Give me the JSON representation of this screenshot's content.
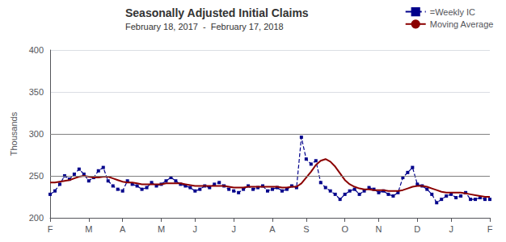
{
  "chart_data": {
    "type": "line",
    "title": "Seasonally Adjusted Initial Claims",
    "subtitle": "February 18, 2017  -  February 17, 2018",
    "ylabel": "Thousands",
    "ylim": [
      200,
      400
    ],
    "yticks": [
      200,
      250,
      300,
      350,
      400
    ],
    "hlines": [
      250,
      300
    ],
    "grid": true,
    "legend": "upper right",
    "categories": [
      "F",
      null,
      null,
      null,
      null,
      null,
      null,
      null,
      "M",
      null,
      null,
      null,
      null,
      null,
      null,
      "A",
      null,
      null,
      null,
      null,
      null,
      null,
      null,
      "M",
      null,
      null,
      null,
      null,
      null,
      null,
      "J",
      null,
      null,
      null,
      null,
      null,
      null,
      null,
      "J",
      null,
      null,
      null,
      null,
      null,
      null,
      null,
      "A",
      null,
      null,
      null,
      null,
      null,
      null,
      "S",
      null,
      null,
      null,
      null,
      null,
      null,
      null,
      "O",
      null,
      null,
      null,
      null,
      null,
      null,
      "N",
      null,
      null,
      null,
      null,
      null,
      null,
      null,
      "D",
      null,
      null,
      null,
      null,
      null,
      null,
      "J",
      null,
      null,
      null,
      null,
      null,
      null,
      null,
      "F"
    ],
    "series": [
      {
        "name": "=Weekly IC",
        "color": "#00008B",
        "line_style": "dashed",
        "marker": "square",
        "values": [
          228,
          232,
          240,
          250,
          246,
          252,
          258,
          252,
          244,
          248,
          256,
          260,
          244,
          238,
          234,
          232,
          244,
          240,
          238,
          234,
          236,
          242,
          238,
          240,
          244,
          248,
          244,
          240,
          238,
          236,
          232,
          234,
          238,
          236,
          240,
          242,
          238,
          234,
          232,
          230,
          234,
          238,
          234,
          236,
          238,
          232,
          234,
          236,
          232,
          234,
          238,
          236,
          296,
          270,
          264,
          268,
          242,
          236,
          232,
          228,
          222,
          228,
          232,
          234,
          228,
          232,
          236,
          234,
          230,
          232,
          228,
          226,
          230,
          248,
          254,
          260,
          240,
          238,
          234,
          228,
          218,
          222,
          226,
          228,
          224,
          226,
          230,
          222,
          222,
          224,
          222,
          222
        ]
      },
      {
        "name": "Moving Average",
        "color": "#8B0000",
        "line_style": "solid",
        "marker": "none",
        "values": [
          242,
          242,
          243,
          244,
          245,
          247,
          249,
          250,
          249,
          248,
          248,
          249,
          249,
          247,
          245,
          243,
          242,
          242,
          241,
          240,
          240,
          240,
          240,
          240,
          241,
          241,
          241,
          241,
          240,
          239,
          238,
          238,
          238,
          238,
          238,
          238,
          238,
          237,
          236,
          236,
          236,
          237,
          237,
          237,
          237,
          237,
          237,
          237,
          236,
          236,
          237,
          237,
          241,
          248,
          255,
          263,
          268,
          270,
          267,
          261,
          253,
          245,
          240,
          237,
          235,
          234,
          234,
          233,
          233,
          233,
          232,
          232,
          232,
          233,
          235,
          237,
          238,
          238,
          237,
          235,
          233,
          231,
          230,
          230,
          230,
          230,
          229,
          228,
          227,
          226,
          225,
          225
        ]
      }
    ]
  }
}
